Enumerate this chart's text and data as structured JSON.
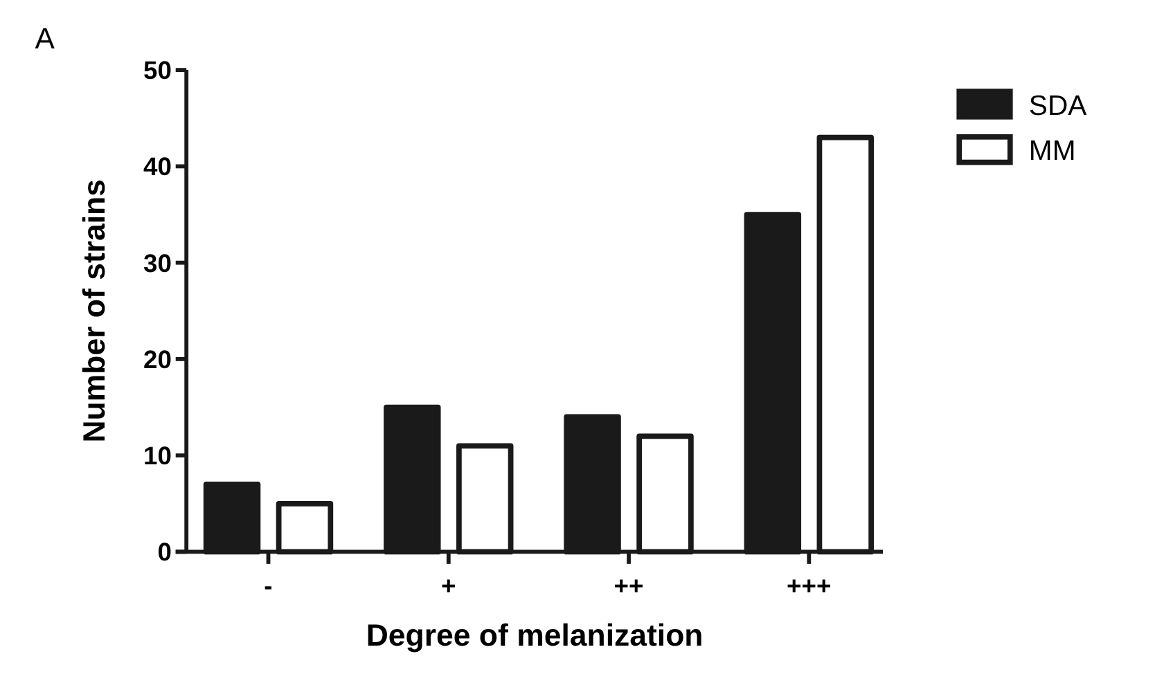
{
  "chart_data": {
    "type": "bar",
    "xlabel": "Degree of melanization",
    "ylabel": "Number of strains",
    "annotations": [
      "A"
    ],
    "categories": [
      "-",
      "+",
      "++",
      "+++"
    ],
    "series": [
      {
        "name": "SDA",
        "color": "#1a1a1a",
        "values": [
          7,
          15,
          14,
          35
        ]
      },
      {
        "name": "MM",
        "color": "#ffffff",
        "values": [
          5,
          11,
          12,
          43
        ]
      }
    ],
    "ylim": [
      0,
      50
    ],
    "yticks": [
      0,
      10,
      20,
      30,
      40,
      50
    ],
    "grid": false,
    "legend": "top right"
  }
}
